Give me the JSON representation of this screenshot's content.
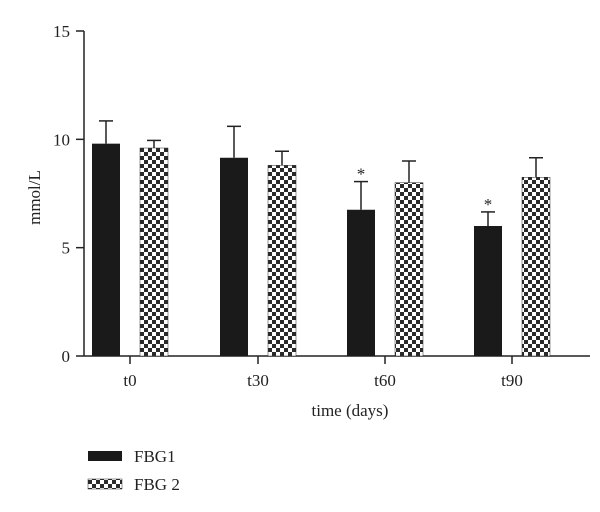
{
  "chart_data": {
    "type": "bar",
    "title": "",
    "xlabel": "time (days)",
    "ylabel": "mmol/L",
    "ylim": [
      0,
      15
    ],
    "yticks": [
      "0",
      "5",
      "10",
      "15"
    ],
    "categories": [
      "t0",
      "t30",
      "t60",
      "t90"
    ],
    "series": [
      {
        "name": "FBG1",
        "color": "#1a1a1a",
        "pattern": "solid",
        "values": [
          9.8,
          9.15,
          6.75,
          6.0
        ],
        "errors": [
          1.05,
          1.45,
          1.3,
          0.65
        ]
      },
      {
        "name": "FBG 2",
        "color": "#2a2a2a",
        "pattern": "checkerboard",
        "values": [
          9.6,
          8.8,
          8.0,
          8.25
        ],
        "errors": [
          0.35,
          0.65,
          1.0,
          0.9
        ]
      }
    ],
    "significance": [
      {
        "category": "t60",
        "series": "FBG1",
        "label": "*"
      },
      {
        "category": "t90",
        "series": "FBG1",
        "label": "*"
      }
    ],
    "grid": false,
    "legend_position": "bottom-left"
  }
}
